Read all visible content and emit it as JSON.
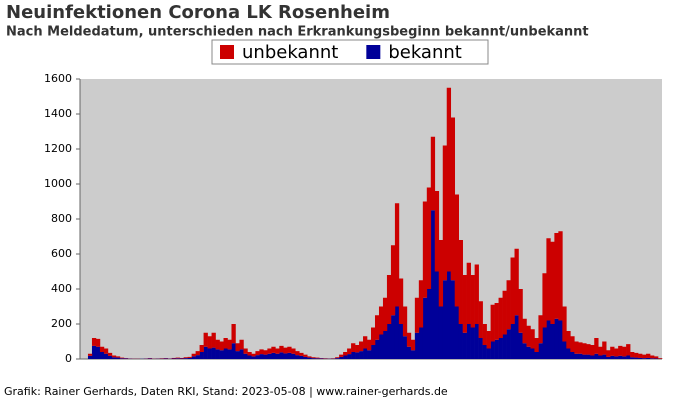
{
  "chart_data": {
    "type": "stacked_bar",
    "title": "Neuinfektionen Corona LK Rosenheim",
    "subtitle": "Nach Meldedatum, unterschieden nach Erkrankungsbeginn bekannt/unbekannt",
    "footer": "Grafik: Rainer Gerhards, Daten RKI, Stand: 2023-05-08 | www.rainer-gerhards.de",
    "categories": [
      null,
      null,
      null,
      null,
      null,
      null,
      null,
      null,
      null,
      null,
      null,
      null,
      null,
      null,
      null,
      null,
      null,
      null,
      null,
      null,
      null,
      null,
      null,
      null,
      null,
      null,
      null,
      null,
      null,
      null,
      null,
      null,
      null,
      null,
      null,
      null,
      null,
      null,
      null,
      null,
      null,
      null,
      null,
      null,
      null,
      null,
      null,
      null,
      null,
      null,
      null,
      null,
      null,
      null,
      null,
      null,
      null,
      null,
      null,
      null,
      null,
      null,
      null,
      null,
      null,
      null,
      null,
      null,
      null,
      null,
      null,
      null,
      null,
      null,
      null,
      null,
      null,
      null,
      null,
      null,
      null,
      null,
      null,
      null,
      null,
      null,
      null,
      null,
      null,
      null,
      null,
      null,
      null,
      null,
      null,
      null,
      null,
      null,
      null,
      null,
      null,
      null,
      null,
      null,
      null,
      null,
      null,
      null,
      null,
      null,
      null,
      null,
      null,
      null,
      null,
      null,
      null,
      null,
      null,
      null,
      null,
      null,
      null,
      null,
      null,
      null,
      null,
      null,
      null,
      null,
      null,
      null,
      null,
      null,
      null,
      null,
      null,
      null,
      null,
      null,
      null,
      null,
      null,
      null,
      null,
      null
    ],
    "series": [
      {
        "name": "unbekannt",
        "color": "#cc0000",
        "values": [
          0,
          0,
          12,
          45,
          45,
          30,
          30,
          17,
          10,
          7,
          4,
          2,
          1,
          1,
          1,
          0,
          1,
          2,
          1,
          1,
          2,
          2,
          1,
          3,
          4,
          3,
          5,
          6,
          15,
          23,
          40,
          80,
          70,
          85,
          55,
          50,
          60,
          55,
          110,
          45,
          55,
          30,
          20,
          15,
          23,
          27,
          25,
          30,
          35,
          30,
          37,
          33,
          35,
          30,
          23,
          17,
          13,
          7,
          5,
          4,
          2,
          2,
          1,
          2,
          5,
          13,
          20,
          32,
          50,
          42,
          55,
          70,
          60,
          100,
          140,
          160,
          190,
          280,
          400,
          590,
          260,
          170,
          80,
          60,
          200,
          270,
          550,
          580,
          420,
          460,
          380,
          770,
          1050,
          930,
          640,
          480,
          330,
          350,
          300,
          340,
          210,
          120,
          100,
          210,
          210,
          230,
          250,
          280,
          380,
          380,
          250,
          140,
          120,
          110,
          80,
          160,
          310,
          470,
          470,
          490,
          510,
          200,
          100,
          90,
          70,
          65,
          65,
          60,
          60,
          90,
          50,
          75,
          38,
          52,
          45,
          57,
          55,
          65,
          30,
          27,
          24,
          20,
          24,
          16,
          12,
          4
        ]
      },
      {
        "name": "bekannt",
        "color": "#000099",
        "values": [
          0,
          0,
          18,
          75,
          70,
          40,
          30,
          18,
          10,
          8,
          4,
          3,
          2,
          1,
          1,
          1,
          2,
          3,
          1,
          2,
          2,
          3,
          2,
          3,
          4,
          3,
          5,
          6,
          15,
          22,
          40,
          70,
          60,
          65,
          55,
          50,
          60,
          55,
          90,
          45,
          55,
          30,
          20,
          15,
          22,
          28,
          25,
          30,
          35,
          30,
          38,
          32,
          35,
          30,
          22,
          18,
          12,
          8,
          5,
          4,
          3,
          2,
          2,
          2,
          5,
          12,
          20,
          28,
          40,
          38,
          45,
          60,
          50,
          80,
          110,
          140,
          160,
          200,
          250,
          300,
          200,
          130,
          70,
          50,
          150,
          180,
          350,
          400,
          850,
          500,
          300,
          450,
          500,
          450,
          300,
          200,
          150,
          200,
          180,
          200,
          120,
          80,
          60,
          100,
          110,
          120,
          140,
          170,
          200,
          250,
          150,
          90,
          70,
          60,
          40,
          90,
          180,
          220,
          200,
          230,
          220,
          100,
          60,
          40,
          30,
          30,
          25,
          25,
          20,
          30,
          20,
          25,
          12,
          18,
          15,
          18,
          15,
          20,
          10,
          8,
          6,
          5,
          6,
          4,
          3,
          1
        ]
      }
    ],
    "ylim": [
      0,
      1600
    ],
    "yticks": [
      0,
      200,
      400,
      600,
      800,
      1000,
      1200,
      1400,
      1600
    ],
    "grid": false,
    "legend": "top"
  }
}
